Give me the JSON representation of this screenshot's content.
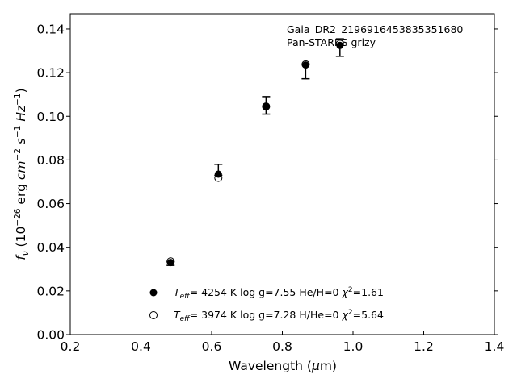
{
  "chart_data": {
    "type": "scatter",
    "annotation": [
      "Gaia_DR2_2196916453835351680",
      "Pan-STARRS grizy"
    ],
    "xlabel": "Wavelength (µm)",
    "ylabel": "f_ν (10⁻²⁶ erg cm⁻² s⁻¹ Hz⁻¹)",
    "xlim": [
      0.2,
      1.4
    ],
    "ylim": [
      0.0,
      0.147
    ],
    "xticks": [
      "0.2",
      "0.4",
      "0.6",
      "0.8",
      "1.0",
      "1.2",
      "1.4"
    ],
    "yticks": [
      "0.00",
      "0.02",
      "0.04",
      "0.06",
      "0.08",
      "0.10",
      "0.12",
      "0.14"
    ],
    "grid": false,
    "legend_position": "lower-center",
    "series": [
      {
        "name": "Teff= 4254 K log g=7.55 He/H=0 χ²=1.61",
        "marker": "filled-circle",
        "x": [
          0.484,
          0.619,
          0.754,
          0.866,
          0.963
        ],
        "y": [
          0.033,
          0.0735,
          0.1045,
          0.1235,
          0.1325
        ]
      },
      {
        "name": "Teff= 3974 K log g=7.28 H/He=0 χ²=5.64",
        "marker": "open-circle",
        "x": [
          0.484,
          0.619,
          0.754,
          0.866,
          0.963
        ],
        "y": [
          0.0335,
          0.0718,
          0.1045,
          0.1238,
          0.1332
        ]
      }
    ],
    "observed": {
      "x": [
        0.484,
        0.619,
        0.754,
        0.866,
        0.963
      ],
      "y": [
        0.0325,
        0.0755,
        0.105,
        0.1205,
        0.1315
      ],
      "yerr": [
        0.0008,
        0.0025,
        0.004,
        0.0033,
        0.004
      ]
    }
  },
  "legend": [
    {
      "teff_value": "4254 K",
      "logg": "log g=7.55",
      "comp": "He/H=0",
      "chi2": "=1.61"
    },
    {
      "teff_value": "3974 K",
      "logg": "log g=7.28",
      "comp": "H/He=0",
      "chi2": "=5.64"
    }
  ]
}
